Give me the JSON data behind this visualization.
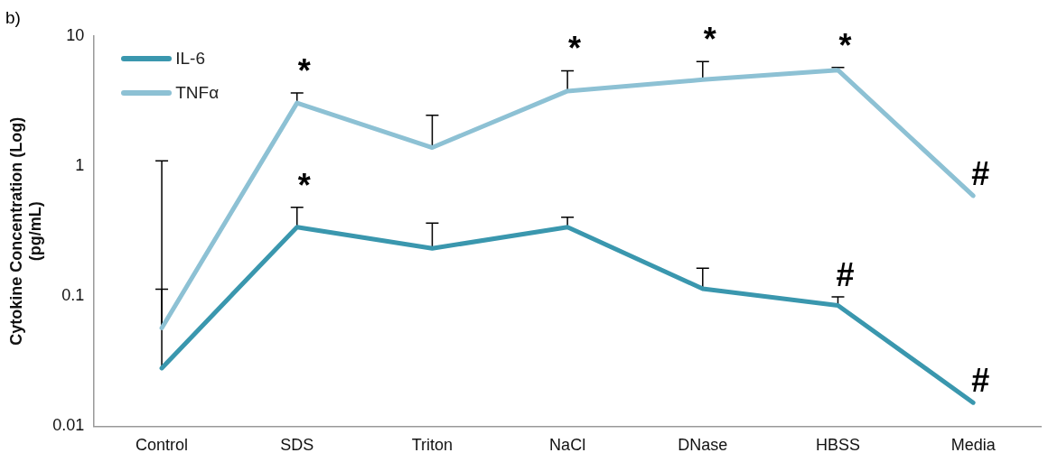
{
  "chart_data": {
    "type": "line",
    "annotations": [
      "b)",
      {
        "text": "*",
        "x": "SDS",
        "y": 3.66
      },
      {
        "text": "*",
        "x": "SDS",
        "y": 0.482
      },
      {
        "text": "*",
        "x": "NaCl",
        "y": 5.41
      },
      {
        "text": "*",
        "x": "DNase",
        "y": 6.38
      },
      {
        "text": "*",
        "x": "HBSS",
        "y": 5.75
      },
      {
        "text": "#",
        "x": "Media",
        "y": 0.592
      },
      {
        "text": "#",
        "x": "HBSS",
        "y": 0.099
      },
      {
        "text": "#",
        "x": "Media",
        "y": 0.0152
      }
    ],
    "ylabel": "Cytokine Concentration (Log)\n(pg/mL)",
    "categories": [
      "Control",
      "SDS",
      "Triton",
      "NaCl",
      "DNase",
      "HBSS",
      "Media"
    ],
    "series": [
      {
        "name": "IL-6",
        "color": "#3a97ae",
        "values": [
          0.028,
          0.34,
          0.233,
          0.34,
          0.114,
          0.085,
          0.0152
        ],
        "errors": [
          [
            0.028,
            0.113
          ],
          [
            0.34,
            0.482
          ],
          [
            0.233,
            0.365
          ],
          [
            0.34,
            0.405
          ],
          [
            0.114,
            0.164
          ],
          [
            0.085,
            0.099
          ],
          null
        ]
      },
      {
        "name": "TNFα",
        "color": "#8dc1d4",
        "values": [
          0.057,
          3.06,
          1.39,
          3.78,
          4.62,
          5.48,
          0.592
        ],
        "errors": [
          [
            0.057,
            1.1
          ],
          [
            3.06,
            3.66
          ],
          [
            1.39,
            2.46
          ],
          [
            3.78,
            5.41
          ],
          [
            4.62,
            6.38
          ],
          [
            5.48,
            5.75
          ],
          null
        ]
      }
    ],
    "log": true,
    "ylim": [
      0.01,
      10
    ],
    "yticks": [
      0.01,
      0.1,
      1,
      10
    ],
    "grid": false,
    "legend": "top left",
    "marker": "none",
    "line_style": "solid"
  }
}
